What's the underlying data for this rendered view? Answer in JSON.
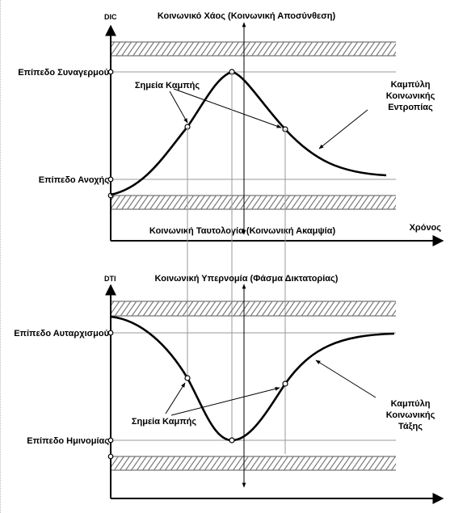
{
  "top": {
    "y_axis_label": "DIC",
    "title_top": "Κοινωνικό Χάος (Κοινωνική Αποσύνθεση)",
    "title_bottom": "Κοινωνική Ταυτολογία (Κοινωνική Ακαμψία)",
    "level_high": "Επίπεδο Συναγερμού",
    "level_low": "Επίπεδο Ανοχής",
    "inflection_label": "Σημεία Καμπής",
    "curve_label_1": "Καμπύλη",
    "curve_label_2": "Κοινωνικής",
    "curve_label_3": "Εντροπίας",
    "x_axis_label": "Χρόνος"
  },
  "bottom": {
    "y_axis_label": "DTI",
    "title_top": "Κοινωνική Υπερνομία (Φάσμα Δικτατορίας)",
    "level_high": "Επίπεδο Αυταρχισμού",
    "level_low": "Επίπεδο Ημινομίας",
    "inflection_label": "Σημεία Καμπής",
    "curve_label_1": "Καμπύλη",
    "curve_label_2": "Κοινωνικής",
    "curve_label_3": "Τάξης"
  },
  "icons": {
    "point_marker": "open-circle",
    "arrow": "arrow-head"
  }
}
